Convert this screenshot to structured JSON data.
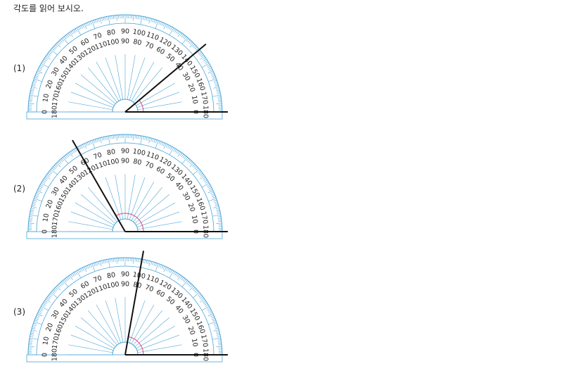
{
  "instruction": "각도를 읽어 보시오.",
  "problems": [
    {
      "label": "(1)",
      "angle_deg": 40
    },
    {
      "label": "(2)",
      "angle_deg": 120
    },
    {
      "label": "(3)",
      "angle_deg": 80
    }
  ],
  "scale": {
    "outer_labels": [
      "0",
      "10",
      "20",
      "30",
      "40",
      "50",
      "60",
      "70",
      "80",
      "90",
      "100",
      "110",
      "120",
      "130",
      "140",
      "150",
      "160",
      "170",
      "180"
    ],
    "inner_labels": [
      "180",
      "170",
      "160",
      "150",
      "140",
      "130",
      "120",
      "110",
      "100",
      "90",
      "80",
      "70",
      "60",
      "50",
      "40",
      "30",
      "20",
      "10",
      "0"
    ]
  },
  "colors": {
    "protractor_line": "#4aa3d6",
    "ray": "#111111",
    "angle_arc": "#e0407a",
    "text": "#222222"
  }
}
